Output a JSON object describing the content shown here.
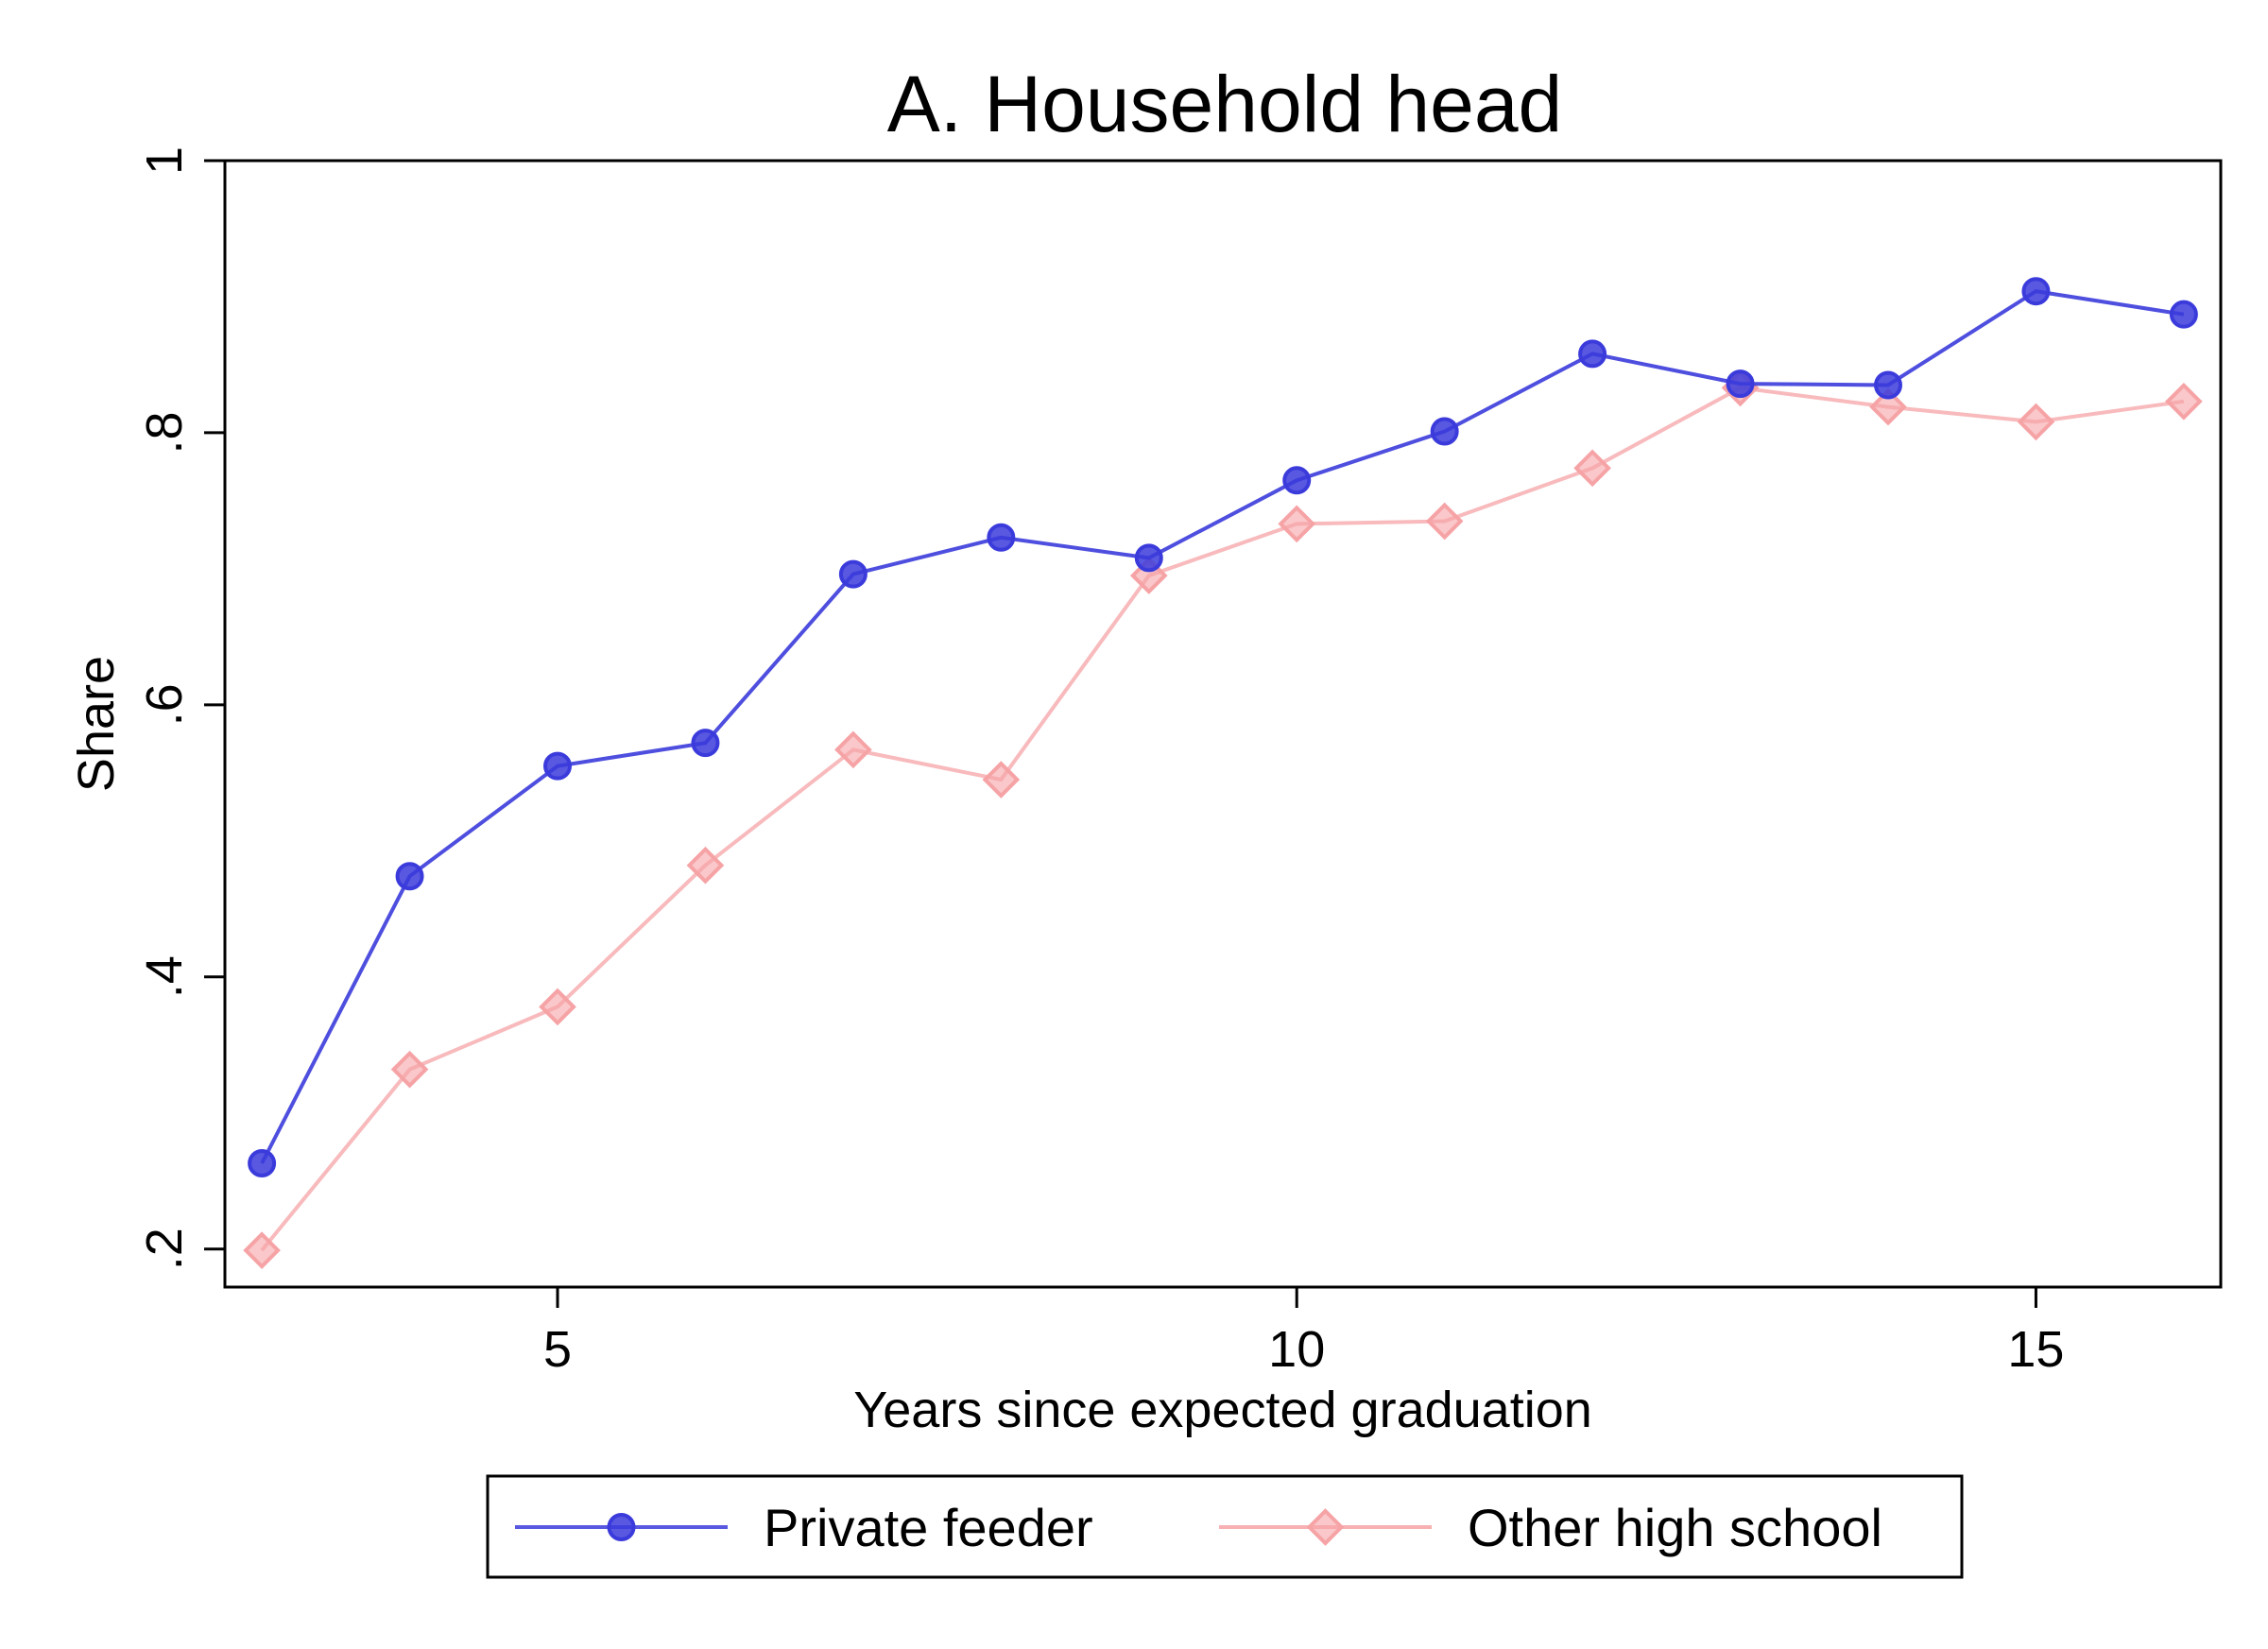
{
  "chart_data": {
    "type": "line",
    "title": "A. Household head",
    "xlabel": "Years since expected graduation",
    "ylabel": "Share",
    "xlim": [
      2.75,
      16.25
    ],
    "ylim": [
      0.172,
      1.0
    ],
    "xticks": [
      5,
      10,
      15
    ],
    "xtick_labels": [
      "5",
      "10",
      "15"
    ],
    "yticks": [
      0.2,
      0.4,
      0.6,
      0.8,
      1.0
    ],
    "ytick_labels": [
      ".2",
      ".4",
      ".6",
      ".8",
      "1"
    ],
    "grid": false,
    "legend_position": "bottom",
    "x": [
      3,
      4,
      5,
      6,
      7,
      8,
      9,
      10,
      11,
      12,
      13,
      14,
      15,
      16
    ],
    "series": [
      {
        "name": "Private feeder",
        "marker": "circle",
        "color": "#3b3bdc",
        "values": [
          0.263,
          0.474,
          0.555,
          0.572,
          0.696,
          0.723,
          0.708,
          0.765,
          0.801,
          0.858,
          0.836,
          0.835,
          0.904,
          0.887
        ]
      },
      {
        "name": "Other high school",
        "marker": "diamond",
        "color": "#f6a3a6",
        "values": [
          0.199,
          0.332,
          0.378,
          0.482,
          0.567,
          0.545,
          0.695,
          0.733,
          0.735,
          0.774,
          0.833,
          0.819,
          0.808,
          0.823
        ]
      }
    ]
  }
}
